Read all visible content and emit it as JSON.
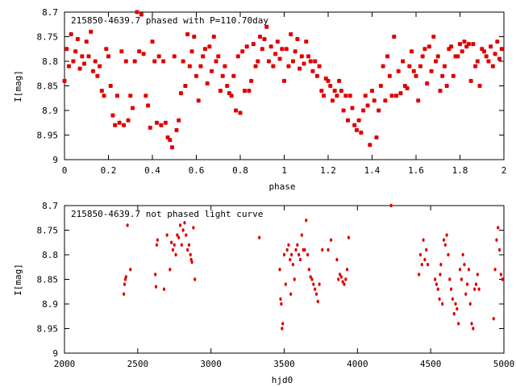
{
  "chart_data": [
    {
      "type": "scatter",
      "title": "215850-4639.7 phased with P=110.70day",
      "xlabel": "phase",
      "ylabel": "I[mag]",
      "xlim": [
        0,
        2
      ],
      "ylim": [
        9,
        8.7
      ],
      "y_inverted": true,
      "xticks": [
        "0",
        "0.2",
        "0.4",
        "0.6",
        "0.8",
        "1",
        "1.2",
        "1.4",
        "1.6",
        "1.8",
        "2"
      ],
      "yticks": [
        "8.7",
        "8.75",
        "8.8",
        "8.85",
        "8.9",
        "8.95",
        "9"
      ],
      "marker_color": "#e00000",
      "grid": false,
      "points": [
        [
          0.0,
          8.84
        ],
        [
          0.01,
          8.775
        ],
        [
          0.02,
          8.81
        ],
        [
          0.03,
          8.745
        ],
        [
          0.04,
          8.8
        ],
        [
          0.05,
          8.78
        ],
        [
          0.06,
          8.755
        ],
        [
          0.07,
          8.815
        ],
        [
          0.08,
          8.79
        ],
        [
          0.09,
          8.805
        ],
        [
          0.1,
          8.76
        ],
        [
          0.11,
          8.79
        ],
        [
          0.12,
          8.74
        ],
        [
          0.13,
          8.82
        ],
        [
          0.14,
          8.8
        ],
        [
          0.15,
          8.83
        ],
        [
          0.16,
          8.81
        ],
        [
          0.17,
          8.86
        ],
        [
          0.18,
          8.87
        ],
        [
          0.19,
          8.775
        ],
        [
          0.2,
          8.79
        ],
        [
          0.21,
          8.85
        ],
        [
          0.22,
          8.91
        ],
        [
          0.23,
          8.93
        ],
        [
          0.24,
          8.87
        ],
        [
          0.25,
          8.925
        ],
        [
          0.26,
          8.78
        ],
        [
          0.27,
          8.93
        ],
        [
          0.28,
          8.8
        ],
        [
          0.29,
          8.92
        ],
        [
          0.3,
          8.87
        ],
        [
          0.31,
          8.895
        ],
        [
          0.32,
          8.8
        ],
        [
          0.33,
          8.7
        ],
        [
          0.34,
          8.78
        ],
        [
          0.35,
          8.705
        ],
        [
          0.36,
          8.785
        ],
        [
          0.37,
          8.87
        ],
        [
          0.38,
          8.89
        ],
        [
          0.39,
          8.935
        ],
        [
          0.4,
          8.76
        ],
        [
          0.41,
          8.8
        ],
        [
          0.42,
          8.925
        ],
        [
          0.43,
          8.79
        ],
        [
          0.44,
          8.93
        ],
        [
          0.45,
          8.8
        ],
        [
          0.46,
          8.925
        ],
        [
          0.47,
          8.955
        ],
        [
          0.48,
          8.96
        ],
        [
          0.49,
          8.975
        ],
        [
          0.5,
          8.79
        ],
        [
          0.51,
          8.94
        ],
        [
          0.52,
          8.92
        ],
        [
          0.53,
          8.865
        ],
        [
          0.54,
          8.8
        ],
        [
          0.55,
          8.85
        ],
        [
          0.56,
          8.745
        ],
        [
          0.57,
          8.81
        ],
        [
          0.58,
          8.78
        ],
        [
          0.59,
          8.75
        ],
        [
          0.6,
          8.83
        ],
        [
          0.61,
          8.88
        ],
        [
          0.62,
          8.81
        ],
        [
          0.63,
          8.79
        ],
        [
          0.64,
          8.775
        ],
        [
          0.65,
          8.845
        ],
        [
          0.66,
          8.77
        ],
        [
          0.67,
          8.82
        ],
        [
          0.68,
          8.75
        ],
        [
          0.69,
          8.8
        ],
        [
          0.7,
          8.79
        ],
        [
          0.71,
          8.86
        ],
        [
          0.72,
          8.83
        ],
        [
          0.73,
          8.81
        ],
        [
          0.74,
          8.85
        ],
        [
          0.75,
          8.865
        ],
        [
          0.76,
          8.87
        ],
        [
          0.77,
          8.83
        ],
        [
          0.78,
          8.9
        ],
        [
          0.79,
          8.79
        ],
        [
          0.8,
          8.905
        ],
        [
          0.81,
          8.78
        ],
        [
          0.82,
          8.86
        ],
        [
          0.83,
          8.77
        ],
        [
          0.84,
          8.86
        ],
        [
          0.85,
          8.84
        ],
        [
          0.86,
          8.765
        ],
        [
          0.87,
          8.81
        ],
        [
          0.88,
          8.8
        ],
        [
          0.89,
          8.75
        ],
        [
          0.9,
          8.775
        ],
        [
          0.91,
          8.755
        ],
        [
          0.92,
          8.73
        ],
        [
          0.93,
          8.8
        ],
        [
          0.94,
          8.77
        ],
        [
          0.95,
          8.81
        ],
        [
          0.96,
          8.785
        ],
        [
          0.97,
          8.76
        ],
        [
          0.98,
          8.795
        ],
        [
          0.99,
          8.775
        ],
        [
          1.0,
          8.84
        ],
        [
          1.01,
          8.775
        ],
        [
          1.02,
          8.81
        ],
        [
          1.03,
          8.745
        ],
        [
          1.04,
          8.8
        ],
        [
          1.05,
          8.78
        ],
        [
          1.06,
          8.755
        ],
        [
          1.07,
          8.815
        ],
        [
          1.08,
          8.79
        ],
        [
          1.09,
          8.805
        ],
        [
          1.1,
          8.76
        ],
        [
          1.11,
          8.79
        ],
        [
          1.12,
          8.8
        ],
        [
          1.13,
          8.82
        ],
        [
          1.14,
          8.8
        ],
        [
          1.15,
          8.83
        ],
        [
          1.16,
          8.81
        ],
        [
          1.17,
          8.86
        ],
        [
          1.18,
          8.87
        ],
        [
          1.19,
          8.835
        ],
        [
          1.2,
          8.84
        ],
        [
          1.21,
          8.85
        ],
        [
          1.22,
          8.88
        ],
        [
          1.23,
          8.86
        ],
        [
          1.24,
          8.87
        ],
        [
          1.25,
          8.84
        ],
        [
          1.26,
          8.86
        ],
        [
          1.27,
          8.9
        ],
        [
          1.28,
          8.87
        ],
        [
          1.29,
          8.92
        ],
        [
          1.3,
          8.87
        ],
        [
          1.31,
          8.895
        ],
        [
          1.32,
          8.93
        ],
        [
          1.33,
          8.94
        ],
        [
          1.34,
          8.92
        ],
        [
          1.35,
          8.945
        ],
        [
          1.36,
          8.9
        ],
        [
          1.37,
          8.87
        ],
        [
          1.38,
          8.89
        ],
        [
          1.39,
          8.97
        ],
        [
          1.4,
          8.86
        ],
        [
          1.41,
          8.88
        ],
        [
          1.42,
          8.955
        ],
        [
          1.43,
          8.9
        ],
        [
          1.44,
          8.85
        ],
        [
          1.45,
          8.81
        ],
        [
          1.46,
          8.88
        ],
        [
          1.47,
          8.79
        ],
        [
          1.48,
          8.83
        ],
        [
          1.49,
          8.87
        ],
        [
          1.5,
          8.75
        ],
        [
          1.51,
          8.87
        ],
        [
          1.52,
          8.82
        ],
        [
          1.53,
          8.865
        ],
        [
          1.54,
          8.8
        ],
        [
          1.55,
          8.85
        ],
        [
          1.56,
          8.855
        ],
        [
          1.57,
          8.81
        ],
        [
          1.58,
          8.78
        ],
        [
          1.59,
          8.82
        ],
        [
          1.6,
          8.83
        ],
        [
          1.61,
          8.88
        ],
        [
          1.62,
          8.81
        ],
        [
          1.63,
          8.79
        ],
        [
          1.64,
          8.775
        ],
        [
          1.65,
          8.845
        ],
        [
          1.66,
          8.77
        ],
        [
          1.67,
          8.82
        ],
        [
          1.68,
          8.75
        ],
        [
          1.69,
          8.8
        ],
        [
          1.7,
          8.79
        ],
        [
          1.71,
          8.86
        ],
        [
          1.72,
          8.83
        ],
        [
          1.73,
          8.81
        ],
        [
          1.74,
          8.85
        ],
        [
          1.75,
          8.775
        ],
        [
          1.76,
          8.77
        ],
        [
          1.77,
          8.83
        ],
        [
          1.78,
          8.79
        ],
        [
          1.79,
          8.79
        ],
        [
          1.8,
          8.765
        ],
        [
          1.81,
          8.78
        ],
        [
          1.82,
          8.76
        ],
        [
          1.83,
          8.77
        ],
        [
          1.84,
          8.765
        ],
        [
          1.85,
          8.84
        ],
        [
          1.86,
          8.765
        ],
        [
          1.87,
          8.81
        ],
        [
          1.88,
          8.8
        ],
        [
          1.89,
          8.85
        ],
        [
          1.9,
          8.775
        ],
        [
          1.91,
          8.78
        ],
        [
          1.92,
          8.79
        ],
        [
          1.93,
          8.8
        ],
        [
          1.94,
          8.77
        ],
        [
          1.95,
          8.81
        ],
        [
          1.96,
          8.785
        ],
        [
          1.97,
          8.76
        ],
        [
          1.98,
          8.795
        ],
        [
          1.99,
          8.775
        ]
      ]
    },
    {
      "type": "scatter",
      "title": "215850-4639.7 not phased light curve",
      "xlabel": "hjd0",
      "ylabel": "I[mag]",
      "xlim": [
        2000,
        5000
      ],
      "ylim": [
        9,
        8.7
      ],
      "y_inverted": true,
      "xticks": [
        "2000",
        "2500",
        "3000",
        "3500",
        "4000",
        "4500",
        "5000"
      ],
      "yticks": [
        "8.7",
        "8.75",
        "8.8",
        "8.85",
        "8.9",
        "8.95",
        "9"
      ],
      "marker_color": "#e00000",
      "grid": false,
      "points": [
        [
          2405,
          8.88
        ],
        [
          2410,
          8.86
        ],
        [
          2415,
          8.85
        ],
        [
          2420,
          8.845
        ],
        [
          2430,
          8.74
        ],
        [
          2450,
          8.83
        ],
        [
          2620,
          8.84
        ],
        [
          2625,
          8.865
        ],
        [
          2630,
          8.78
        ],
        [
          2635,
          8.77
        ],
        [
          2680,
          8.87
        ],
        [
          2700,
          8.76
        ],
        [
          2720,
          8.83
        ],
        [
          2730,
          8.775
        ],
        [
          2740,
          8.79
        ],
        [
          2750,
          8.78
        ],
        [
          2760,
          8.8
        ],
        [
          2770,
          8.76
        ],
        [
          2780,
          8.765
        ],
        [
          2790,
          8.74
        ],
        [
          2800,
          8.78
        ],
        [
          2810,
          8.75
        ],
        [
          2820,
          8.735
        ],
        [
          2830,
          8.76
        ],
        [
          2840,
          8.79
        ],
        [
          2850,
          8.78
        ],
        [
          2860,
          8.8
        ],
        [
          2865,
          8.81
        ],
        [
          2870,
          8.815
        ],
        [
          2880,
          8.745
        ],
        [
          2890,
          8.85
        ],
        [
          3330,
          8.765
        ],
        [
          3470,
          8.83
        ],
        [
          3475,
          8.89
        ],
        [
          3480,
          8.9
        ],
        [
          3485,
          8.95
        ],
        [
          3490,
          8.94
        ],
        [
          3500,
          8.8
        ],
        [
          3510,
          8.86
        ],
        [
          3520,
          8.79
        ],
        [
          3530,
          8.78
        ],
        [
          3540,
          8.81
        ],
        [
          3545,
          8.88
        ],
        [
          3550,
          8.8
        ],
        [
          3560,
          8.82
        ],
        [
          3570,
          8.85
        ],
        [
          3580,
          8.79
        ],
        [
          3590,
          8.78
        ],
        [
          3600,
          8.8
        ],
        [
          3610,
          8.81
        ],
        [
          3620,
          8.76
        ],
        [
          3630,
          8.79
        ],
        [
          3640,
          8.79
        ],
        [
          3650,
          8.73
        ],
        [
          3660,
          8.8
        ],
        [
          3670,
          8.83
        ],
        [
          3680,
          8.845
        ],
        [
          3690,
          8.85
        ],
        [
          3700,
          8.86
        ],
        [
          3710,
          8.87
        ],
        [
          3720,
          8.88
        ],
        [
          3730,
          8.895
        ],
        [
          3740,
          8.86
        ],
        [
          3760,
          8.79
        ],
        [
          3800,
          8.79
        ],
        [
          3820,
          8.77
        ],
        [
          3860,
          8.81
        ],
        [
          3870,
          8.85
        ],
        [
          3880,
          8.84
        ],
        [
          3890,
          8.845
        ],
        [
          3900,
          8.855
        ],
        [
          3910,
          8.86
        ],
        [
          3920,
          8.85
        ],
        [
          3930,
          8.83
        ],
        [
          3940,
          8.765
        ],
        [
          4230,
          8.7
        ],
        [
          4420,
          8.84
        ],
        [
          4430,
          8.8
        ],
        [
          4440,
          8.82
        ],
        [
          4450,
          8.77
        ],
        [
          4460,
          8.81
        ],
        [
          4470,
          8.79
        ],
        [
          4480,
          8.82
        ],
        [
          4530,
          8.85
        ],
        [
          4540,
          8.86
        ],
        [
          4550,
          8.87
        ],
        [
          4560,
          8.89
        ],
        [
          4565,
          8.84
        ],
        [
          4570,
          8.82
        ],
        [
          4580,
          8.9
        ],
        [
          4590,
          8.77
        ],
        [
          4600,
          8.78
        ],
        [
          4610,
          8.76
        ],
        [
          4620,
          8.8
        ],
        [
          4630,
          8.85
        ],
        [
          4640,
          8.87
        ],
        [
          4650,
          8.89
        ],
        [
          4660,
          8.92
        ],
        [
          4670,
          8.9
        ],
        [
          4680,
          8.91
        ],
        [
          4690,
          8.94
        ],
        [
          4700,
          8.83
        ],
        [
          4710,
          8.85
        ],
        [
          4720,
          8.8
        ],
        [
          4730,
          8.82
        ],
        [
          4740,
          8.88
        ],
        [
          4750,
          8.86
        ],
        [
          4760,
          8.83
        ],
        [
          4770,
          8.9
        ],
        [
          4780,
          8.94
        ],
        [
          4790,
          8.95
        ],
        [
          4800,
          8.87
        ],
        [
          4810,
          8.86
        ],
        [
          4820,
          8.84
        ],
        [
          4830,
          8.87
        ],
        [
          4930,
          8.93
        ],
        [
          4940,
          8.83
        ],
        [
          4950,
          8.77
        ],
        [
          4960,
          8.745
        ],
        [
          4970,
          8.79
        ],
        [
          4980,
          8.84
        ],
        [
          4990,
          8.85
        ]
      ]
    }
  ]
}
